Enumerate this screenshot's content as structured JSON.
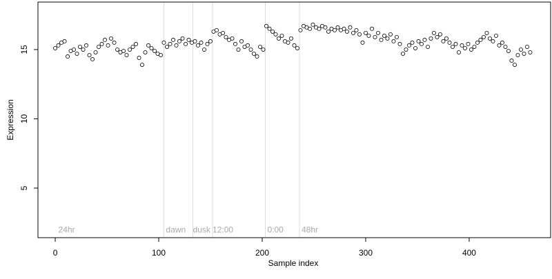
{
  "chart_data": {
    "type": "scatter",
    "x_label": "Sample index",
    "y_label": "Expression",
    "xlim": [
      -16.7,
      478.7
    ],
    "ylim": [
      1.42,
      18.43
    ],
    "xticks": [
      0,
      100,
      200,
      300,
      400
    ],
    "yticks": [
      5,
      10,
      15
    ],
    "point_color": "#ffffff",
    "point_stroke": "#000000",
    "vlines": [
      105,
      133,
      152,
      203,
      236
    ],
    "vline_color": "#dddddd",
    "annotations": [
      {
        "text": "24hr",
        "x": 3,
        "y": 2
      },
      {
        "text": "dawn",
        "x": 107,
        "y": 2
      },
      {
        "text": "dusk",
        "x": 133,
        "y": 2
      },
      {
        "text": "12:00",
        "x": 152,
        "y": 2
      },
      {
        "text": "0:00",
        "x": 205,
        "y": 2
      },
      {
        "text": "48hr",
        "x": 238,
        "y": 2
      }
    ],
    "series": [
      {
        "x": [
          0,
          3,
          6,
          9,
          12,
          15,
          18,
          21,
          24,
          27,
          30,
          33,
          36,
          39,
          42,
          45,
          48,
          51,
          54,
          57,
          60,
          63,
          66,
          69,
          72,
          75,
          78,
          81,
          84,
          87,
          90,
          93,
          96,
          99,
          102,
          105,
          108,
          111,
          114,
          117,
          120,
          123,
          126,
          129,
          132,
          135,
          138,
          141,
          144,
          147,
          150,
          153,
          156,
          159,
          162,
          165,
          168,
          171,
          174,
          177,
          180,
          183,
          186,
          189,
          192,
          195,
          198,
          201,
          204,
          207,
          210,
          213,
          216,
          219,
          222,
          225,
          228,
          231,
          234,
          237,
          240,
          243,
          246,
          249,
          252,
          255,
          258,
          261,
          264,
          267,
          270,
          273,
          276,
          279,
          282,
          285,
          288,
          291,
          294,
          297,
          300,
          303,
          306,
          309,
          312,
          315,
          318,
          321,
          324,
          327,
          330,
          333,
          336,
          339,
          342,
          345,
          348,
          351,
          354,
          357,
          360,
          363,
          366,
          369,
          372,
          375,
          378,
          381,
          384,
          387,
          390,
          393,
          396,
          399,
          402,
          405,
          408,
          411,
          414,
          417,
          420,
          423,
          426,
          429,
          432,
          435,
          438,
          441,
          444,
          447,
          450,
          453,
          456,
          459
        ],
        "values": [
          15.1,
          15.3,
          15.5,
          15.6,
          14.5,
          14.9,
          15.0,
          14.7,
          15.2,
          15.0,
          15.3,
          14.6,
          14.3,
          14.8,
          15.2,
          15.4,
          15.7,
          15.3,
          15.8,
          15.5,
          15.0,
          14.8,
          14.9,
          14.6,
          15.0,
          15.2,
          15.4,
          14.4,
          13.9,
          14.8,
          15.3,
          15.1,
          14.9,
          14.7,
          14.6,
          15.5,
          15.2,
          15.4,
          15.7,
          15.3,
          15.6,
          15.8,
          15.4,
          15.7,
          15.5,
          15.6,
          15.3,
          15.5,
          15.0,
          15.4,
          15.6,
          16.3,
          16.4,
          16.1,
          16.2,
          15.9,
          15.7,
          15.8,
          15.4,
          15.0,
          15.6,
          15.2,
          15.3,
          15.0,
          14.7,
          14.5,
          15.2,
          15.0,
          16.7,
          16.5,
          16.3,
          16.1,
          15.8,
          16.0,
          15.6,
          15.5,
          15.8,
          15.3,
          15.1,
          16.4,
          16.7,
          16.6,
          16.5,
          16.8,
          16.6,
          16.5,
          16.7,
          16.6,
          16.3,
          16.5,
          16.4,
          16.6,
          16.4,
          16.5,
          16.3,
          16.6,
          16.2,
          16.4,
          16.1,
          15.5,
          16.2,
          16.0,
          16.5,
          15.9,
          16.2,
          15.7,
          16.0,
          15.8,
          16.1,
          15.6,
          15.9,
          15.4,
          14.7,
          15.0,
          15.3,
          15.5,
          15.1,
          15.6,
          15.4,
          15.7,
          15.2,
          15.8,
          16.2,
          15.9,
          16.1,
          15.6,
          15.8,
          15.5,
          15.2,
          15.4,
          14.8,
          15.3,
          15.1,
          15.4,
          15.0,
          15.2,
          15.5,
          15.7,
          15.9,
          16.2,
          15.8,
          15.6,
          16.0,
          15.3,
          15.5,
          15.2,
          14.9,
          14.2,
          13.9,
          14.6,
          15.0,
          14.7,
          15.2,
          14.8
        ]
      }
    ]
  }
}
